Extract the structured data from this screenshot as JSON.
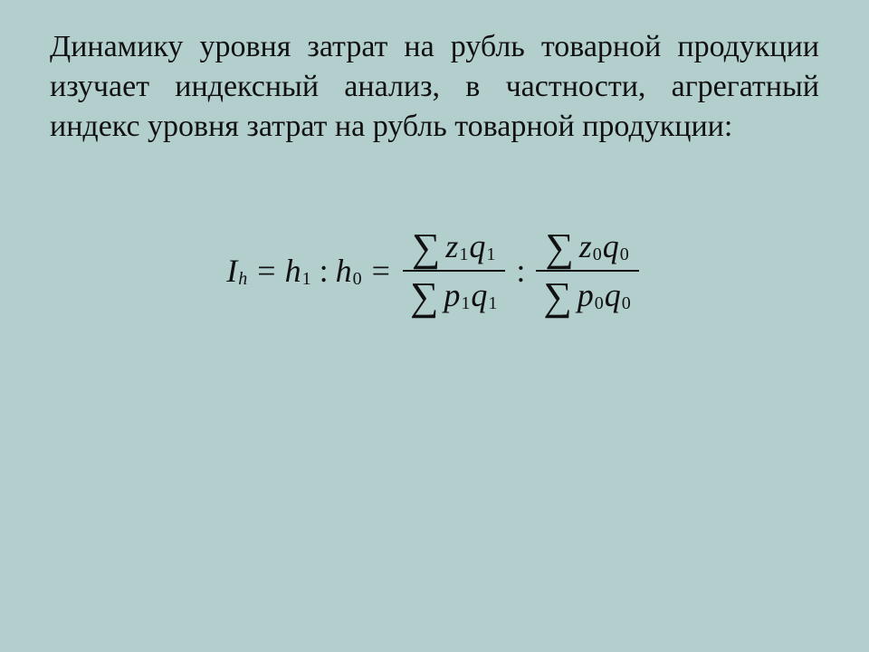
{
  "background_color": "#b2cfce",
  "text_color": "#111111",
  "font_family": "Times New Roman",
  "paragraph": {
    "text": "Динамику уровня затрат на рубль товарной продукции изучает индексный анализ, в частности, агрегатный индекс уровня затрат на рубль товарной продукции:",
    "fontsize": 34,
    "align": "justify"
  },
  "formula": {
    "I": "I",
    "I_sub": "h",
    "h1": "h",
    "h1_sub": "1",
    "h0": "h",
    "h0_sub": "0",
    "eq": "=",
    "colon": ":",
    "sum": "∑",
    "frac1": {
      "num_a": "z",
      "num_a_sub": "1",
      "num_b": "q",
      "num_b_sub": "1",
      "den_a": "p",
      "den_a_sub": "1",
      "den_b": "q",
      "den_b_sub": "1"
    },
    "frac2": {
      "num_a": "z",
      "num_a_sub": "0",
      "num_b": "q",
      "num_b_sub": "0",
      "den_a": "p",
      "den_a_sub": "0",
      "den_b": "q",
      "den_b_sub": "0"
    },
    "fontsize": 36,
    "sub_fontsize": 20
  }
}
